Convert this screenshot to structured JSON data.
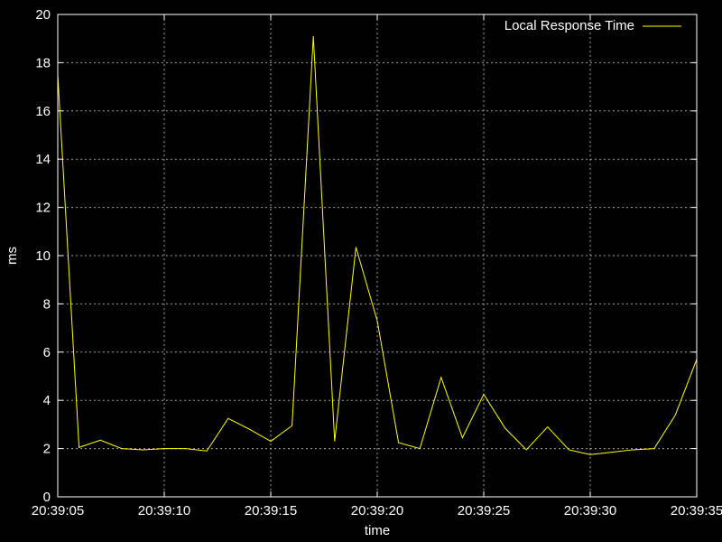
{
  "chart_data": {
    "type": "line",
    "title": "",
    "xlabel": "time",
    "ylabel": "ms",
    "x_ticks": [
      "20:39:05",
      "20:39:10",
      "20:39:15",
      "20:39:20",
      "20:39:25",
      "20:39:30",
      "20:39:35"
    ],
    "y_ticks": [
      "0",
      "2",
      "4",
      "6",
      "8",
      "10",
      "12",
      "14",
      "16",
      "18",
      "20"
    ],
    "xlim": [
      "20:39:05",
      "20:39:35"
    ],
    "ylim": [
      0,
      20
    ],
    "grid": true,
    "legend_position": "top-right",
    "series": [
      {
        "name": "Local Response Time",
        "color": "#ffff00",
        "x": [
          "20:39:05",
          "20:39:06",
          "20:39:07",
          "20:39:08",
          "20:39:09",
          "20:39:10",
          "20:39:11",
          "20:39:12",
          "20:39:13",
          "20:39:14",
          "20:39:15",
          "20:39:16",
          "20:39:17",
          "20:39:18",
          "20:39:19",
          "20:39:20",
          "20:39:21",
          "20:39:22",
          "20:39:23",
          "20:39:24",
          "20:39:25",
          "20:39:26",
          "20:39:27",
          "20:39:28",
          "20:39:29",
          "20:39:30",
          "20:39:31",
          "20:39:32",
          "20:39:33",
          "20:39:34",
          "20:39:35"
        ],
        "values": [
          17.5,
          2.05,
          2.35,
          2.0,
          1.95,
          2.0,
          2.0,
          1.9,
          3.25,
          2.8,
          2.3,
          2.95,
          19.1,
          2.3,
          10.35,
          7.3,
          2.25,
          2.0,
          4.95,
          2.45,
          4.25,
          2.85,
          1.95,
          2.9,
          1.95,
          1.75,
          1.85,
          1.95,
          2.0,
          3.4,
          5.7
        ]
      }
    ]
  }
}
